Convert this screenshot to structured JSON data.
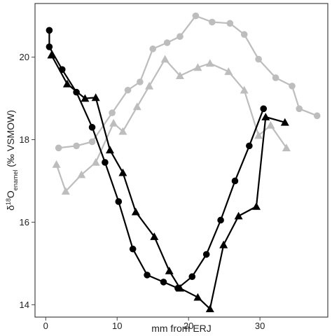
{
  "chart_data": {
    "type": "line",
    "title": "",
    "xlabel": "mm from ERJ",
    "ylabel": {
      "prefix": "δ",
      "sup": "18",
      "main": "O",
      "sub": "enamel",
      "suffix": " (‰ VSMOW)"
    },
    "xlim": [
      -1.5,
      39.5
    ],
    "ylim": [
      13.7,
      21.3
    ],
    "x_ticks": [
      0,
      10,
      20,
      30
    ],
    "y_ticks": [
      14,
      16,
      18,
      20
    ],
    "grid": false,
    "legend": "none",
    "series": [
      {
        "color": "#bdbdbd",
        "marker": "circle",
        "points": [
          [
            1.8,
            17.8
          ],
          [
            4.3,
            17.85
          ],
          [
            6.5,
            17.95
          ],
          [
            9.3,
            18.65
          ],
          [
            11.5,
            19.2
          ],
          [
            13.2,
            19.4
          ],
          [
            15.0,
            20.2
          ],
          [
            17.0,
            20.35
          ],
          [
            18.8,
            20.5
          ],
          [
            21.0,
            21.0
          ],
          [
            23.3,
            20.85
          ],
          [
            25.8,
            20.82
          ],
          [
            27.8,
            20.55
          ],
          [
            29.8,
            19.95
          ],
          [
            32.2,
            19.5
          ],
          [
            34.5,
            19.3
          ],
          [
            35.5,
            18.75
          ],
          [
            38.0,
            18.58
          ]
        ]
      },
      {
        "color": "#bdbdbd",
        "marker": "triangle",
        "points": [
          [
            1.5,
            17.4
          ],
          [
            2.8,
            16.75
          ],
          [
            5.0,
            17.15
          ],
          [
            7.0,
            17.45
          ],
          [
            9.5,
            18.4
          ],
          [
            10.8,
            18.2
          ],
          [
            12.8,
            18.8
          ],
          [
            14.5,
            19.3
          ],
          [
            16.7,
            19.95
          ],
          [
            18.8,
            19.55
          ],
          [
            21.3,
            19.75
          ],
          [
            23.0,
            19.85
          ],
          [
            25.6,
            19.65
          ],
          [
            27.8,
            19.2
          ],
          [
            29.8,
            18.1
          ],
          [
            31.5,
            18.35
          ],
          [
            33.7,
            17.8
          ]
        ]
      },
      {
        "color": "#000000",
        "marker": "circle",
        "points": [
          [
            0.5,
            20.65
          ],
          [
            0.5,
            20.25
          ],
          [
            2.3,
            19.7
          ],
          [
            4.3,
            19.15
          ],
          [
            6.5,
            18.3
          ],
          [
            8.3,
            17.45
          ],
          [
            10.2,
            16.5
          ],
          [
            12.2,
            15.35
          ],
          [
            14.2,
            14.72
          ],
          [
            16.5,
            14.55
          ],
          [
            18.5,
            14.4
          ],
          [
            20.5,
            14.68
          ],
          [
            22.5,
            15.22
          ],
          [
            24.5,
            16.05
          ],
          [
            26.5,
            17.0
          ],
          [
            28.5,
            17.85
          ],
          [
            30.5,
            18.75
          ]
        ]
      },
      {
        "color": "#000000",
        "marker": "triangle",
        "points": [
          [
            0.8,
            20.05
          ],
          [
            3.0,
            19.35
          ],
          [
            5.5,
            19.0
          ],
          [
            7.0,
            19.02
          ],
          [
            9.0,
            17.75
          ],
          [
            10.8,
            17.2
          ],
          [
            12.6,
            16.25
          ],
          [
            15.2,
            15.65
          ],
          [
            17.3,
            14.82
          ],
          [
            18.8,
            14.4
          ],
          [
            21.3,
            14.18
          ],
          [
            23.0,
            13.9
          ],
          [
            24.9,
            15.45
          ],
          [
            27.0,
            16.15
          ],
          [
            29.5,
            16.38
          ],
          [
            30.8,
            18.55
          ],
          [
            33.5,
            18.42
          ]
        ]
      }
    ]
  }
}
